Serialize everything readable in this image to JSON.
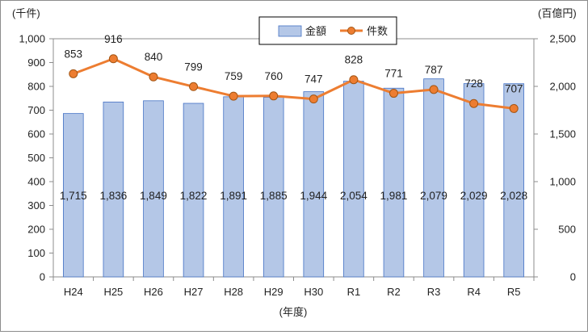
{
  "chart_data": {
    "type": "bar+line",
    "categories": [
      "H24",
      "H25",
      "H26",
      "H27",
      "H28",
      "H29",
      "H30",
      "R1",
      "R2",
      "R3",
      "R4",
      "R5"
    ],
    "series": [
      {
        "name": "金額",
        "type": "bar",
        "axis": "right",
        "color": "#b4c7e7",
        "values": [
          1715,
          1836,
          1849,
          1822,
          1891,
          1885,
          1944,
          2054,
          1981,
          2079,
          2029,
          2028
        ],
        "labels": [
          "1,715",
          "1,836",
          "1,849",
          "1,822",
          "1,891",
          "1,885",
          "1,944",
          "2,054",
          "1,981",
          "2,079",
          "2,029",
          "2,028"
        ]
      },
      {
        "name": "件数",
        "type": "line",
        "axis": "left",
        "color": "#ed7d31",
        "values": [
          853,
          916,
          840,
          799,
          759,
          760,
          747,
          828,
          771,
          787,
          728,
          707
        ],
        "labels": [
          "853",
          "916",
          "840",
          "799",
          "759",
          "760",
          "747",
          "828",
          "771",
          "787",
          "728",
          "707"
        ]
      }
    ],
    "left_axis": {
      "unit": "(千件)",
      "ylim": [
        0,
        1000
      ],
      "ticks": [
        0,
        100,
        200,
        300,
        400,
        500,
        600,
        700,
        800,
        900,
        1000
      ],
      "tick_labels": [
        "0",
        "100",
        "200",
        "300",
        "400",
        "500",
        "600",
        "700",
        "800",
        "900",
        "1,000"
      ]
    },
    "right_axis": {
      "unit": "(百億円)",
      "ylim": [
        0,
        2500
      ],
      "ticks": [
        0,
        500,
        1000,
        1500,
        2000,
        2500
      ],
      "tick_labels": [
        "0",
        "500",
        "1,000",
        "1,500",
        "2,000",
        "2,500"
      ]
    },
    "xlabel": "(年度)",
    "legend_placement": "top-center",
    "grid": false
  }
}
